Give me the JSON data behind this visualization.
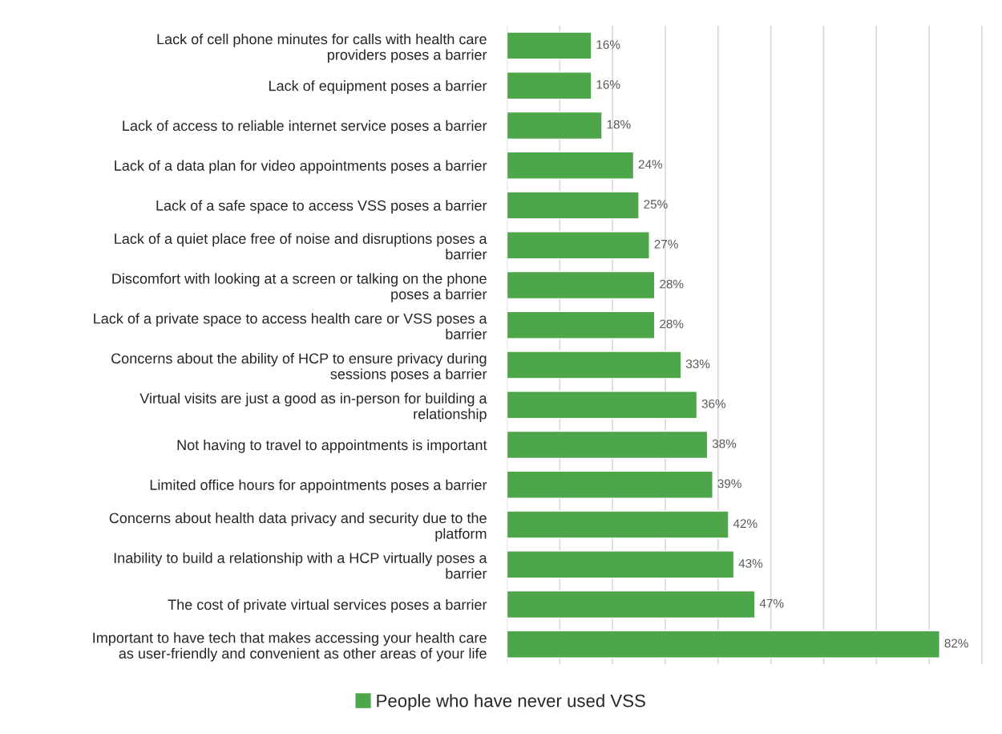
{
  "chart_data": {
    "type": "bar",
    "orientation": "horizontal",
    "categories": [
      "Lack of cell phone minutes for calls with health care providers poses a barrier",
      "Lack of equipment poses a barrier",
      "Lack of access to reliable internet service poses a barrier",
      "Lack of a data plan for video appointments poses a barrier",
      "Lack of a safe space to access VSS poses a barrier",
      "Lack of a quiet place free of noise and disruptions poses a barrier",
      "Discomfort with looking at a screen or talking on the phone poses a barrier",
      "Lack of a private space to access health care or VSS poses a barrier",
      "Concerns about the ability of HCP to ensure privacy during sessions poses a barrier",
      "Virtual visits are just a good as in-person for building a relationship",
      "Not having to travel to appointments is important",
      "Limited office hours for appointments poses a barrier",
      "Concerns about health data privacy and security due to the platform",
      "Inability to build a relationship with a HCP virtually poses a barrier",
      "The cost of private virtual services poses a barrier",
      "Important to have tech that makes accessing your health care as user-friendly and convenient as other areas of your life"
    ],
    "series": [
      {
        "name": "People who have never used VSS",
        "color": "#4ea64a",
        "values": [
          16,
          16,
          18,
          24,
          25,
          27,
          28,
          28,
          33,
          36,
          38,
          39,
          42,
          43,
          47,
          82
        ],
        "value_labels": [
          "16%",
          "16%",
          "18%",
          "24%",
          "25%",
          "27%",
          "28%",
          "28%",
          "33%",
          "36%",
          "38%",
          "39%",
          "42%",
          "43%",
          "47%",
          "82%"
        ]
      }
    ],
    "grid": "x",
    "legend": "bottom",
    "tick_labels": "y"
  }
}
